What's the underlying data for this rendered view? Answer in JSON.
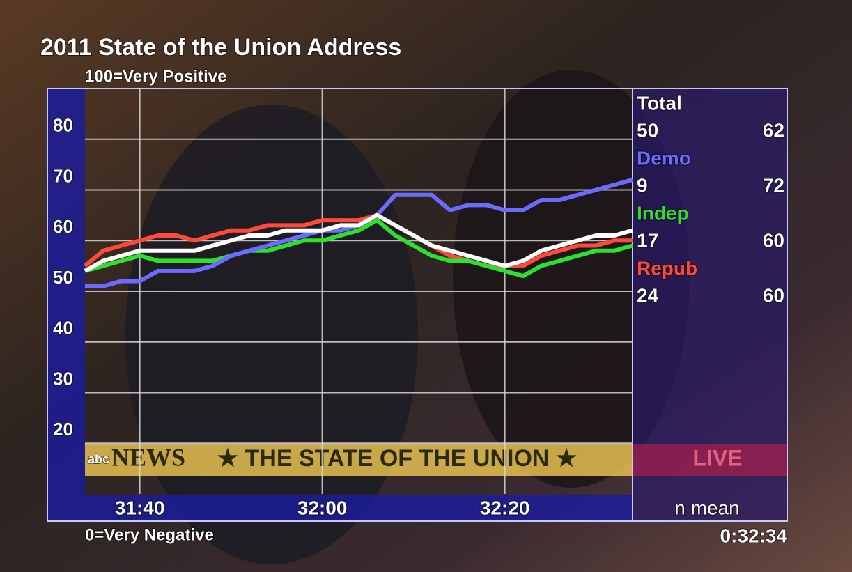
{
  "chart_data": {
    "type": "line",
    "title": "2011 State of the Union Address",
    "top_note": "100=Very Positive",
    "bottom_note": "0=Very Negative",
    "clock": "0:32:34",
    "stats_header": "n mean",
    "x": [
      1894,
      1896,
      1898,
      1900,
      1902,
      1904,
      1906,
      1908,
      1910,
      1912,
      1914,
      1916,
      1918,
      1920,
      1922,
      1924,
      1926,
      1928,
      1930,
      1932,
      1934,
      1936,
      1938,
      1940,
      1942,
      1944,
      1946,
      1948,
      1950,
      1952,
      1954
    ],
    "xlim": [
      1894,
      1954
    ],
    "xticks": [
      {
        "value": 1900,
        "label": "31:40"
      },
      {
        "value": 1920,
        "label": "32:00"
      },
      {
        "value": 1940,
        "label": "32:20"
      }
    ],
    "ylim": [
      10,
      90
    ],
    "yticks": [
      20,
      30,
      40,
      50,
      60,
      70,
      80
    ],
    "grid": true,
    "series": [
      {
        "name": "Total",
        "color": "#ffffff",
        "n": 50,
        "mean": 62,
        "values": [
          54,
          56,
          57,
          58,
          58,
          58,
          58,
          59,
          60,
          61,
          61,
          62,
          62,
          62,
          63,
          63,
          65,
          63,
          61,
          59,
          58,
          57,
          56,
          55,
          56,
          58,
          59,
          60,
          61,
          61,
          62
        ]
      },
      {
        "name": "Demo",
        "color": "#6b6bff",
        "n": 9,
        "mean": 72,
        "values": [
          51,
          51,
          52,
          52,
          54,
          54,
          54,
          55,
          57,
          58,
          59,
          60,
          61,
          62,
          62,
          63,
          65,
          69,
          69,
          69,
          66,
          67,
          67,
          66,
          66,
          68,
          68,
          69,
          70,
          71,
          72
        ]
      },
      {
        "name": "Indep",
        "color": "#2ee02e",
        "n": 17,
        "mean": 60,
        "values": [
          54,
          55,
          56,
          57,
          56,
          56,
          56,
          56,
          57,
          58,
          58,
          59,
          60,
          60,
          61,
          62,
          64,
          61,
          59,
          57,
          56,
          56,
          55,
          54,
          53,
          55,
          56,
          57,
          58,
          58,
          59
        ]
      },
      {
        "name": "Repub",
        "color": "#ff4a3a",
        "n": 24,
        "mean": 60,
        "values": [
          55,
          58,
          59,
          60,
          61,
          61,
          60,
          61,
          62,
          62,
          63,
          63,
          63,
          64,
          64,
          64,
          65,
          63,
          61,
          59,
          57,
          56,
          55,
          55,
          55,
          57,
          58,
          59,
          59,
          60,
          60
        ]
      }
    ]
  },
  "broadcast": {
    "logo": "abc",
    "network": "NEWS",
    "banner": "★ THE STATE OF THE UNION ★",
    "live": "LIVE"
  }
}
